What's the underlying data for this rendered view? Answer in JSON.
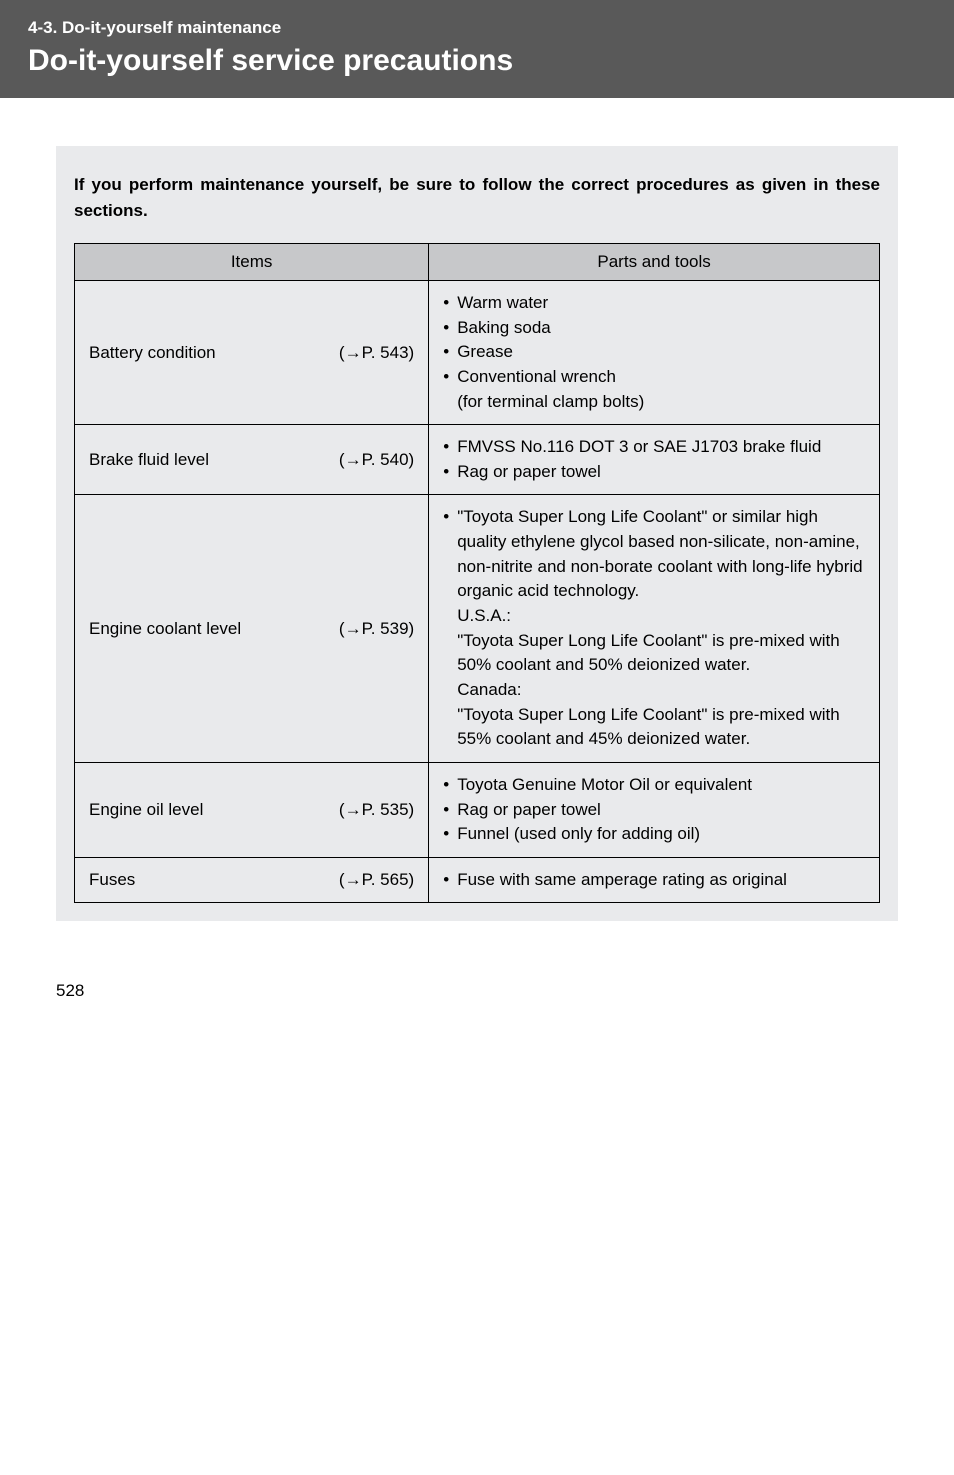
{
  "header": {
    "section_label": "4-3. Do-it-yourself maintenance",
    "title": "Do-it-yourself service precautions"
  },
  "intro": "If you perform maintenance yourself, be sure to follow the correct procedures as given in these sections.",
  "table": {
    "col_items": "Items",
    "col_parts": "Parts and tools"
  },
  "rows": {
    "battery": {
      "name": "Battery condition",
      "ref": "(→P. 543)",
      "p1": "Warm water",
      "p2": "Baking soda",
      "p3": "Grease",
      "p4": "Conventional wrench",
      "p4sub": "(for terminal clamp bolts)"
    },
    "brake": {
      "name": "Brake fluid level",
      "ref": "(→P. 540)",
      "p1": "FMVSS No.116 DOT 3 or SAE J1703 brake fluid",
      "p2": "Rag or paper towel"
    },
    "coolant": {
      "name": "Engine coolant level",
      "ref": "(→P. 539)",
      "p1a": "\"Toyota Super Long Life Coolant\" or similar high quality ethylene glycol based non-silicate, non-amine, non-nitrite and non-borate coolant with long-life hybrid organic acid technology.",
      "p1b": "U.S.A.:",
      "p1c": "\"Toyota Super Long Life Coolant\" is pre-mixed with 50% coolant and 50% deionized water.",
      "p1d": "Canada:",
      "p1e": "\"Toyota Super Long Life Coolant\" is pre-mixed with 55% coolant and 45% deionized water."
    },
    "oil": {
      "name": "Engine oil level",
      "ref": "(→P. 535)",
      "p1": "Toyota Genuine Motor Oil or equivalent",
      "p2": "Rag or paper towel",
      "p3": "Funnel (used only for adding oil)"
    },
    "fuses": {
      "name": "Fuses",
      "ref": "(→P. 565)",
      "p1": "Fuse with same amperage rating as original"
    }
  },
  "page_number": "528",
  "colors": {
    "header_bg": "#595959",
    "header_text": "#ffffff",
    "content_bg": "#e9eaec",
    "th_bg": "#c7c8ca",
    "border": "#000000"
  }
}
